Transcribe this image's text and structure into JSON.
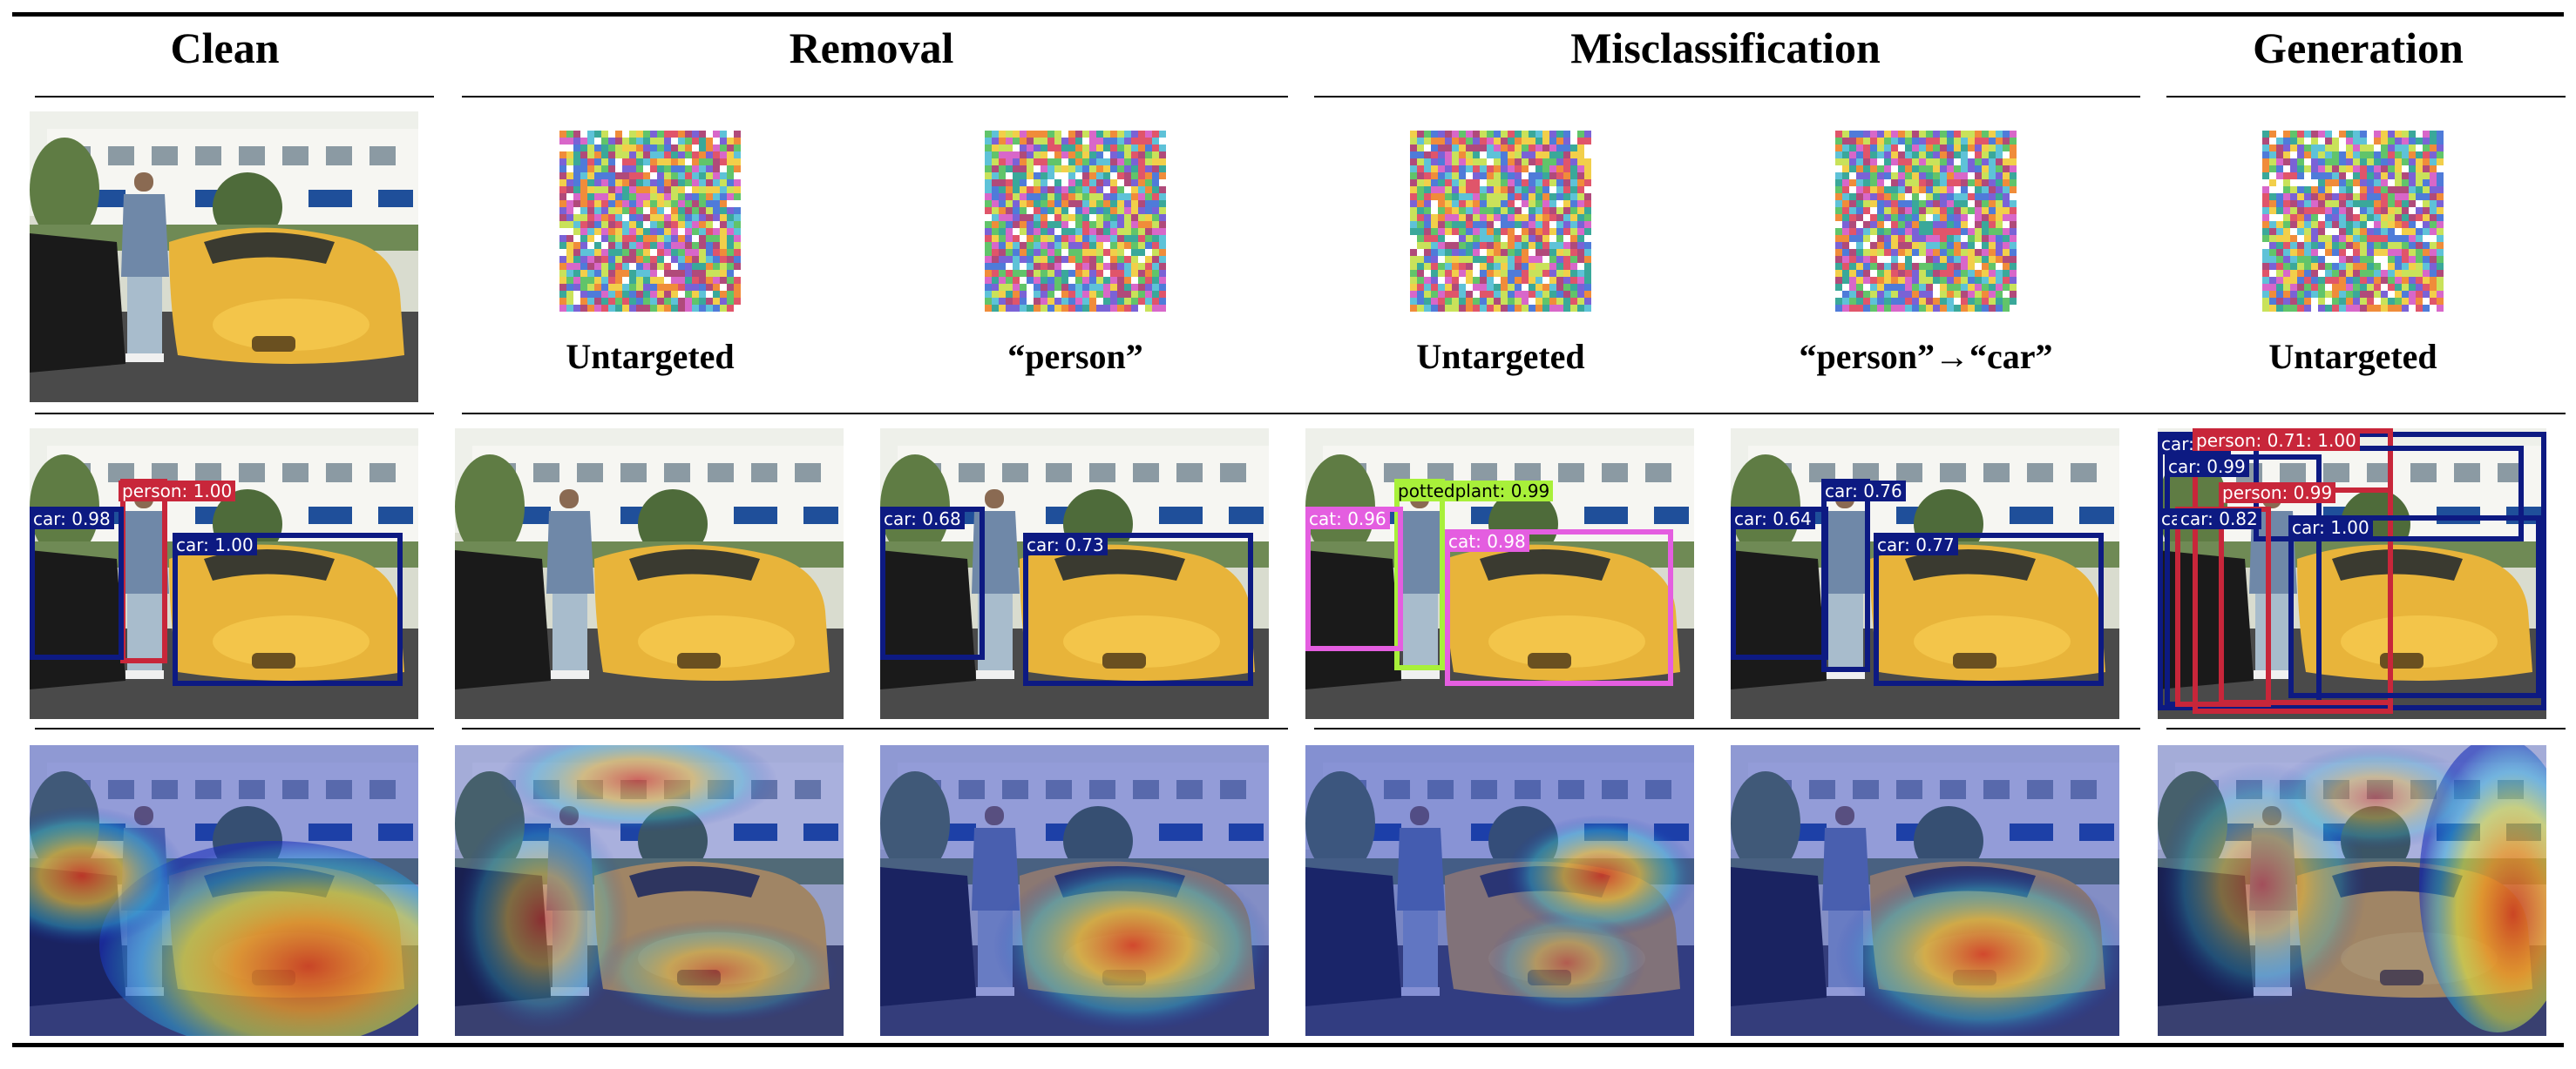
{
  "columns": {
    "clean": "Clean",
    "removal": "Removal",
    "misclassification": "Misclassification",
    "generation": "Generation"
  },
  "patch_captions": [
    "Untargeted",
    "“person”",
    "Untargeted",
    "“person”→“car”",
    "Untargeted"
  ],
  "detections": {
    "clean": [
      {
        "label": "person: 1.00",
        "color": "#c8263a"
      },
      {
        "label": "car: 0.98",
        "color": "#0d1a82"
      },
      {
        "label": "car: 1.00",
        "color": "#0d1a82"
      }
    ],
    "removal_targeted": [
      {
        "label": "car: 0.68",
        "color": "#0d1a82"
      },
      {
        "label": "car: 0.73",
        "color": "#0d1a82"
      }
    ],
    "misc_untargeted": [
      {
        "label": "pottedplant: 0.99",
        "color": "#a8f03a"
      },
      {
        "label": "cat: 0.96",
        "color": "#e45ee0"
      },
      {
        "label": "cat: 0.98",
        "color": "#e45ee0"
      }
    ],
    "misc_targeted": [
      {
        "label": "car: 0.76",
        "color": "#0d1a82"
      },
      {
        "label": "car: 0.64",
        "color": "#0d1a82"
      },
      {
        "label": "car: 0.77",
        "color": "#0d1a82"
      }
    ],
    "generation": [
      {
        "label": "car: 0.9",
        "color": "#0d1a82"
      },
      {
        "label": "person: 0.71: 1.00",
        "color": "#c8263a"
      },
      {
        "label": "car: 0.99",
        "color": "#0d1a82"
      },
      {
        "label": "person: 0.99",
        "color": "#c8263a"
      },
      {
        "label": "ca",
        "color": "#0d1a82"
      },
      {
        "label": "car: 0.82",
        "color": "#0d1a82"
      },
      {
        "label": "car: 1.00",
        "color": "#0d1a82"
      }
    ]
  }
}
